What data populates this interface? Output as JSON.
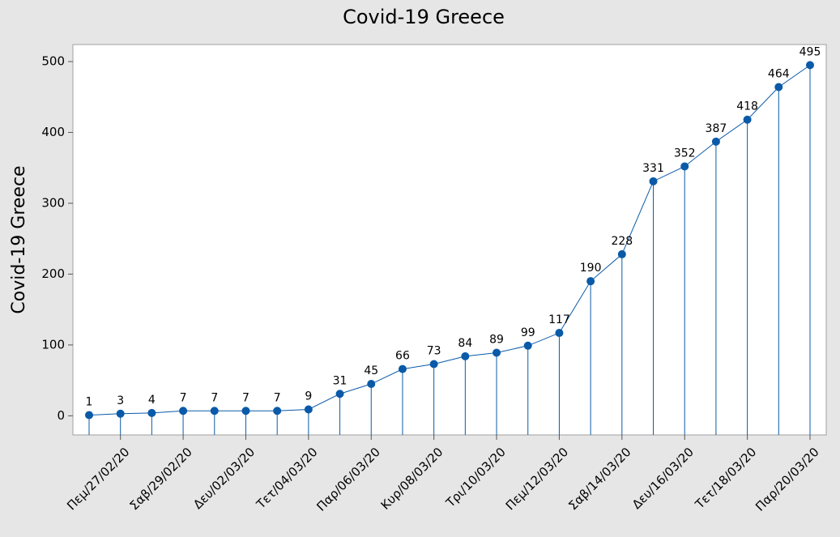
{
  "chart_data": {
    "type": "line",
    "title": "Covid-19 Greece",
    "ylabel": "Covid-19 Greece",
    "categories": [
      null,
      "Πεμ/27/02/20",
      null,
      "Σαβ/29/02/20",
      null,
      "Δευ/02/03/20",
      null,
      "Τετ/04/03/20",
      null,
      "Παρ/06/03/20",
      null,
      "Κυρ/08/03/20",
      null,
      "Τρι/10/03/20",
      null,
      "Πεμ/12/03/20",
      null,
      "Σαβ/14/03/20",
      null,
      "Δευ/16/03/20",
      null,
      "Τετ/18/03/20",
      null,
      "Παρ/20/03/20"
    ],
    "values": [
      1,
      3,
      4,
      7,
      7,
      7,
      7,
      9,
      31,
      45,
      66,
      73,
      84,
      89,
      99,
      117,
      190,
      228,
      331,
      352,
      387,
      418,
      464,
      495
    ],
    "color": "#0a5aa8",
    "stems": true,
    "data_labels": true,
    "ylim": [
      -27,
      524
    ],
    "yticks": [
      0,
      100,
      200,
      300,
      400,
      500
    ]
  }
}
